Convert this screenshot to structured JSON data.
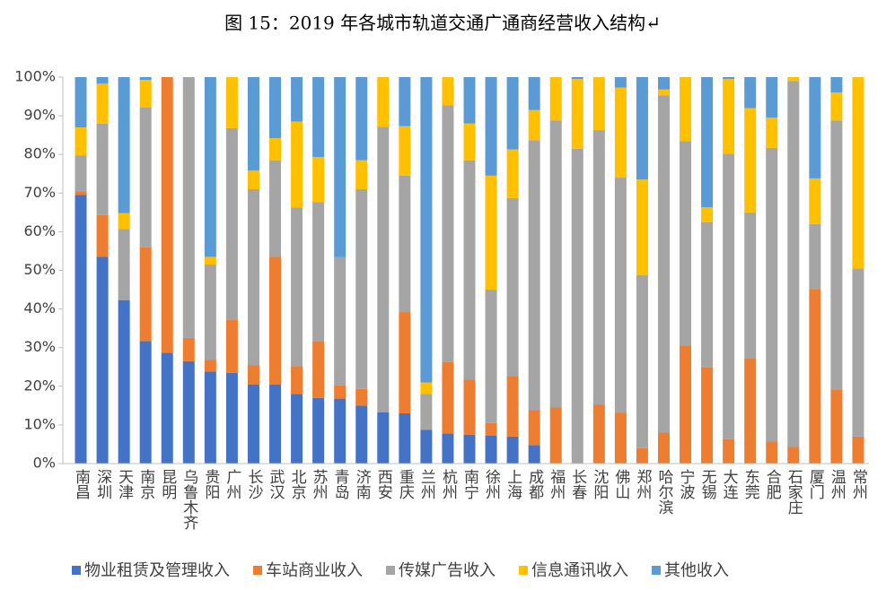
{
  "chart_data": {
    "type": "stacked_bar",
    "title": "图 15：2019 年各城市轨道交通广通商经营收入结构↵",
    "categories": [
      "南昌",
      "深圳",
      "天津",
      "南京",
      "昆明",
      "乌鲁木齐",
      "贵阳",
      "广州",
      "长沙",
      "武汉",
      "北京",
      "苏州",
      "青岛",
      "济南",
      "西安",
      "重庆",
      "兰州",
      "杭州",
      "南宁",
      "徐州",
      "上海",
      "成都",
      "福州",
      "长春",
      "沈阳",
      "佛山",
      "郑州",
      "哈尔滨",
      "宁波",
      "无锡",
      "大连",
      "东莞",
      "合肥",
      "石家庄",
      "厦门",
      "温州",
      "常州"
    ],
    "series": [
      {
        "name": "物业租赁及管理收入",
        "color": "#4472c4",
        "values": [
          69.5,
          53.5,
          42.3,
          31.7,
          28.7,
          26.5,
          23.8,
          23.5,
          20.5,
          20.5,
          18,
          17,
          16.8,
          15,
          13.3,
          13,
          8.7,
          7.8,
          7.5,
          7.2,
          7,
          4.8,
          0,
          0,
          0,
          0,
          0,
          0,
          0,
          0,
          0,
          0,
          0,
          0,
          0,
          0,
          0
        ]
      },
      {
        "name": "车站商业收入",
        "color": "#ed7d31",
        "values": [
          1,
          10.8,
          0,
          24.3,
          71.3,
          6,
          3,
          13.8,
          5,
          33,
          7.2,
          14.7,
          3.4,
          4.3,
          0,
          26.2,
          0,
          18.5,
          14.2,
          3.3,
          15.7,
          9,
          14.5,
          0,
          15.3,
          13.2,
          4,
          8,
          30.5,
          25,
          6.3,
          27.3,
          5.7,
          4.3,
          45.2,
          19.2,
          7
        ]
      },
      {
        "name": "传媒广告收入",
        "color": "#a5a5a5",
        "values": [
          9.2,
          23.7,
          18.4,
          36.2,
          0,
          67.5,
          24.7,
          49.5,
          45.5,
          25,
          41.1,
          36,
          33.2,
          51.7,
          73.9,
          35.3,
          9.3,
          66.4,
          56.8,
          34.5,
          46,
          69.9,
          74.3,
          81.5,
          71,
          60.8,
          44.8,
          87.3,
          53,
          37.5,
          73.9,
          37.7,
          76,
          94.7,
          16.8,
          69.6,
          43.5
        ]
      },
      {
        "name": "信息通讯收入",
        "color": "#ffc000",
        "values": [
          7.3,
          10.3,
          4.1,
          7.1,
          0,
          0,
          2,
          13.2,
          4.8,
          5.7,
          22.2,
          11.6,
          0,
          7.5,
          12.8,
          12.8,
          3,
          7.3,
          9.5,
          29.5,
          12.6,
          7.8,
          11.2,
          18,
          13.7,
          23.3,
          24.7,
          1.5,
          16.5,
          3.8,
          19.3,
          27,
          7.8,
          1,
          11.8,
          7.2,
          49.5
        ]
      },
      {
        "name": "其他收入",
        "color": "#5b9bd5",
        "values": [
          13,
          1.7,
          35.2,
          0.7,
          0,
          0,
          46.5,
          0,
          24.2,
          15.8,
          11.5,
          20.7,
          46.6,
          21.5,
          0,
          12.7,
          79,
          0,
          12,
          25.5,
          18.7,
          8.5,
          0,
          0.5,
          0,
          2.7,
          26.5,
          3.2,
          0,
          33.7,
          0.5,
          8,
          10.5,
          0,
          26.2,
          4,
          0
        ]
      }
    ],
    "ylim": [
      0,
      100
    ],
    "yticks": [
      {
        "value": 0,
        "label": "0%"
      },
      {
        "value": 10,
        "label": "10%"
      },
      {
        "value": 20,
        "label": "20%"
      },
      {
        "value": 30,
        "label": "30%"
      },
      {
        "value": 40,
        "label": "40%"
      },
      {
        "value": 50,
        "label": "50%"
      },
      {
        "value": 60,
        "label": "60%"
      },
      {
        "value": 70,
        "label": "70%"
      },
      {
        "value": 80,
        "label": "80%"
      },
      {
        "value": 90,
        "label": "90%"
      },
      {
        "value": 100,
        "label": "100%"
      }
    ],
    "grid": false
  }
}
